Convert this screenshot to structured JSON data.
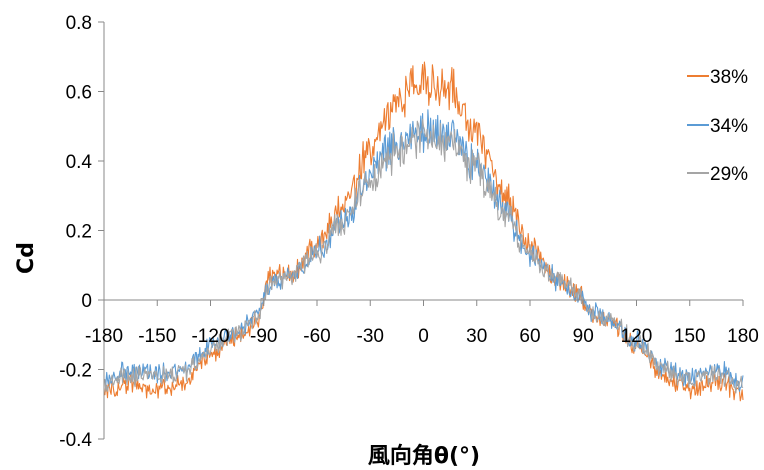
{
  "chart_data": {
    "type": "line",
    "xlabel": "風向角θ(°)",
    "ylabel": "Cd",
    "xlim": [
      -180,
      180
    ],
    "ylim": [
      -0.4,
      0.8
    ],
    "x_ticks": [
      "-180",
      "-150",
      "-120",
      "-90",
      "-60",
      "-30",
      "0",
      "30",
      "60",
      "90",
      "120",
      "150",
      "180"
    ],
    "y_ticks": [
      "0.8",
      "0.6",
      "0.4",
      "0.2",
      "0",
      "-0.2",
      "-0.4"
    ],
    "grid": false,
    "legend_position": "right",
    "x": [
      -180,
      -165,
      -150,
      -135,
      -120,
      -105,
      -93,
      -90,
      -88,
      -75,
      -60,
      -45,
      -30,
      -15,
      0,
      15,
      30,
      45,
      60,
      75,
      88,
      90,
      93,
      105,
      120,
      135,
      150,
      165,
      180
    ],
    "series": [
      {
        "name": "38%",
        "color": "#ED7D31",
        "values": [
          -0.26,
          -0.24,
          -0.26,
          -0.24,
          -0.16,
          -0.1,
          -0.06,
          0.0,
          0.06,
          0.08,
          0.16,
          0.27,
          0.43,
          0.57,
          0.63,
          0.61,
          0.48,
          0.31,
          0.15,
          0.06,
          0.02,
          0.0,
          -0.04,
          -0.07,
          -0.13,
          -0.22,
          -0.26,
          -0.23,
          -0.27
        ]
      },
      {
        "name": "34%",
        "color": "#5B9BD5",
        "values": [
          -0.23,
          -0.2,
          -0.21,
          -0.2,
          -0.13,
          -0.09,
          -0.05,
          0.0,
          0.04,
          0.07,
          0.14,
          0.23,
          0.36,
          0.46,
          0.49,
          0.47,
          0.39,
          0.26,
          0.13,
          0.06,
          0.02,
          0.0,
          -0.03,
          -0.06,
          -0.12,
          -0.19,
          -0.22,
          -0.2,
          -0.24
        ]
      },
      {
        "name": "29%",
        "color": "#A5A5A5",
        "values": [
          -0.24,
          -0.22,
          -0.22,
          -0.21,
          -0.14,
          -0.09,
          -0.05,
          0.0,
          0.04,
          0.07,
          0.14,
          0.23,
          0.34,
          0.43,
          0.47,
          0.45,
          0.37,
          0.25,
          0.13,
          0.06,
          0.02,
          0.0,
          -0.03,
          -0.06,
          -0.12,
          -0.2,
          -0.23,
          -0.21,
          -0.25
        ]
      }
    ]
  }
}
